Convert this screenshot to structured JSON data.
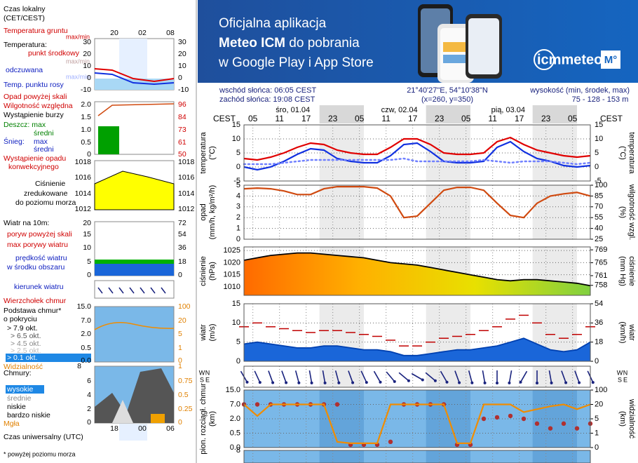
{
  "legend": {
    "local_time": [
      "Czas lokalny",
      "(CET/CEST)"
    ],
    "local_hours": [
      "20",
      "02",
      "08"
    ],
    "temp_labels": [
      "Temperatura gruntu",
      "max/min",
      "Temperatura:",
      "punkt środkowy",
      "max/min",
      "odczuwana",
      "max/min",
      "Temp. punktu rosy"
    ],
    "temp_ticks": [
      "30",
      "20",
      "10",
      "0",
      "-10"
    ],
    "precip_labels": [
      "Opad powyżej skali",
      "Wilgotność względna",
      "Wystąpienie burzy",
      "Deszcz: max",
      "średni",
      "Śnieg:",
      "max",
      "średni",
      "Wystąpienie opadu",
      "konwekcyjnego"
    ],
    "precip_ticks": [
      "2.0",
      "1.5",
      "1.0",
      "0.5",
      "0"
    ],
    "humidity_ticks": [
      "96",
      "84",
      "73",
      "61",
      "50"
    ],
    "pressure_labels": [
      "Ciśnienie",
      "zredukowane",
      "do poziomu morza"
    ],
    "pressure_ticks": [
      "1018",
      "1016",
      "1014",
      "1012"
    ],
    "wind_labels": [
      "Wiatr na 10m:",
      "poryw powyżej skali",
      "max porywy wiatru",
      "prędkość wiatru",
      "w środku obszaru"
    ],
    "wind_ticks": [
      "20",
      "15",
      "10",
      "5",
      "0"
    ],
    "wind_kmh_ticks": [
      "72",
      "54",
      "36",
      "18",
      "0"
    ],
    "wind_direction": "kierunek wiatru",
    "cloud_base_labels": [
      "Wierzchołek chmur",
      "Podstawa chmur*",
      "o pokryciu",
      "> 7.9 okt.",
      "> 6.5 okt.",
      "> 4.5 okt.",
      "> 2.5 okt.",
      "> 0.1 okt.",
      "Widzialność"
    ],
    "cloud_base_ticks": [
      "15.0",
      "7.0",
      "2.0",
      "0.5",
      "0.0"
    ],
    "visibility_ticks": [
      "100",
      "20",
      "5",
      "1",
      "0"
    ],
    "clouds_labels": [
      "Chmury:",
      "wysokie",
      "średnie",
      "niskie",
      "bardzo niskie",
      "Mgła"
    ],
    "clouds_ticks": [
      "8",
      "6",
      "4",
      "2",
      "0"
    ],
    "fog_ticks": [
      "1",
      "0.75",
      "0.5",
      "0.25",
      "0"
    ],
    "utc_label": "Czas uniwersalny (UTC)",
    "utc_hours": [
      "18",
      "00",
      "06"
    ],
    "footnote": "* powyżej poziomu morza"
  },
  "banner": {
    "line1": "Oficjalna aplikacja",
    "line2": [
      "Meteo ICM",
      " do pobrania"
    ],
    "line3": "w Google Play i App Store",
    "logo": [
      "icmmeteo",
      "M°"
    ]
  },
  "header": {
    "sunrise": "wschód słońca: 06:05 CEST",
    "sunset": "zachód słońca: 19:08 CEST",
    "coords": "21°40'27\"E, 54°10'38\"N",
    "grid": "(x=260, y=350)",
    "elevation_label": "wysokość (min, środek, max)",
    "elevation": "75 - 128 - 153 m"
  },
  "chart_data": [
    {
      "type": "line",
      "time_zone": "CEST",
      "day_labels": [
        {
          "value": 11,
          "label": "śro, 01.04"
        },
        {
          "value": 35,
          "label": "czw, 02.04"
        },
        {
          "value": 59.5,
          "label": "pią, 03.04"
        }
      ],
      "xlim": [
        0,
        78
      ],
      "xticks": [
        {
          "value": 2,
          "label": "05"
        },
        {
          "value": 8,
          "label": "11"
        },
        {
          "value": 14,
          "label": "17"
        },
        {
          "value": 20,
          "label": "23"
        },
        {
          "value": 26,
          "label": "05"
        },
        {
          "value": 32,
          "label": "11"
        },
        {
          "value": 38,
          "label": "17"
        },
        {
          "value": 44,
          "label": "23"
        },
        {
          "value": 50,
          "label": "05"
        },
        {
          "value": 56,
          "label": "11"
        },
        {
          "value": 62,
          "label": "17"
        },
        {
          "value": 68,
          "label": "23"
        },
        {
          "value": 74,
          "label": "05"
        }
      ],
      "x": [
        0,
        3,
        6,
        9,
        12,
        15,
        18,
        21,
        24,
        27,
        30,
        33,
        36,
        39,
        42,
        45,
        48,
        51,
        54,
        57,
        60,
        63,
        66,
        69,
        72,
        75,
        78
      ],
      "y_label": [
        "temperatura",
        "(°C)"
      ],
      "ylim": [
        -5,
        15
      ],
      "yticks": [
        -5,
        0,
        5,
        10,
        15
      ],
      "series": [
        {
          "style": "line",
          "color": "#e00000",
          "values": [
            3,
            2.5,
            3.5,
            5,
            7,
            8.5,
            8,
            6,
            5,
            4.5,
            4.5,
            7,
            10,
            10,
            8,
            5,
            4.5,
            4.5,
            5,
            9,
            10.5,
            8,
            6,
            5,
            4,
            3.5,
            4
          ]
        },
        {
          "style": "line",
          "color": "#1030e0",
          "values": [
            0,
            -1,
            0,
            2,
            4.5,
            6.5,
            6,
            3,
            2,
            1.5,
            1.5,
            4,
            8,
            8.5,
            5.5,
            2,
            1.5,
            1.5,
            2,
            7,
            9,
            5.5,
            3,
            2,
            0.5,
            0,
            0.5
          ]
        },
        {
          "style": "dotted",
          "color": "#7080ff",
          "values": [
            1,
            1,
            1,
            1.5,
            2,
            2.5,
            2.5,
            2.5,
            2.5,
            2.5,
            2.5,
            2.5,
            3,
            2,
            2,
            2,
            2,
            2,
            2.5,
            2,
            1.5,
            2,
            2,
            2,
            1.5,
            1,
            1.5
          ]
        }
      ]
    },
    {
      "type": "line",
      "xlim": [
        0,
        78
      ],
      "x": [
        0,
        3,
        6,
        9,
        12,
        15,
        18,
        21,
        24,
        27,
        30,
        33,
        36,
        39,
        42,
        45,
        48,
        51,
        54,
        57,
        60,
        63,
        66,
        69,
        72,
        75,
        78
      ],
      "y_label": [
        "opad",
        "(mm/h, kg/m²/h)"
      ],
      "y2_label": [
        "(%)",
        "wilgotność wzgl."
      ],
      "ylim": [
        0,
        5
      ],
      "yticks": [
        0,
        1,
        2,
        3,
        4,
        5
      ],
      "y2lim": [
        25,
        100
      ],
      "y2ticks": [
        25,
        40,
        55,
        70,
        85,
        100
      ],
      "series": [
        {
          "style": "line",
          "axis": "y2",
          "color": "#d04a10",
          "values": [
            95,
            96,
            95,
            92,
            87,
            87,
            95,
            98,
            98,
            98,
            96,
            85,
            55,
            57,
            75,
            93,
            97,
            97,
            93,
            75,
            58,
            55,
            75,
            85,
            88,
            90,
            85
          ]
        }
      ]
    },
    {
      "type": "area",
      "xlim": [
        0,
        78
      ],
      "x": [
        0,
        3,
        6,
        9,
        12,
        15,
        18,
        21,
        24,
        27,
        30,
        33,
        36,
        39,
        42,
        45,
        48,
        51,
        54,
        57,
        60,
        63,
        66,
        69,
        72,
        75,
        78
      ],
      "y_label": [
        "ciśnienie",
        "(hPa)"
      ],
      "y2_label": [
        "(mm Hg)",
        "ciśnienie"
      ],
      "ylim": [
        1006.5,
        1026.5
      ],
      "yticks": [
        1010,
        1015,
        1020,
        1025
      ],
      "y2lim": [
        754.9,
        769.9
      ],
      "y2ticks": [
        758,
        761,
        765,
        769
      ],
      "series": [
        {
          "style": "area",
          "color": "#000000",
          "fill": [
            "#ff6a00",
            "#ffb000",
            "#e8e000",
            "#80d040"
          ],
          "values": [
            1021,
            1022,
            1023,
            1023.5,
            1024,
            1024,
            1023.5,
            1023,
            1022.5,
            1022,
            1021,
            1020,
            1019.5,
            1019,
            1018,
            1017,
            1016,
            1015,
            1014,
            1013,
            1012.5,
            1013,
            1013,
            1012.5,
            1012,
            1011.5,
            1010.5
          ]
        }
      ]
    },
    {
      "type": "area",
      "xlim": [
        0,
        78
      ],
      "x": [
        0,
        3,
        6,
        9,
        12,
        15,
        18,
        21,
        24,
        27,
        30,
        33,
        36,
        39,
        42,
        45,
        48,
        51,
        54,
        57,
        60,
        63,
        66,
        69,
        72,
        75,
        78
      ],
      "y_label": [
        "wiatr",
        "(m/s)"
      ],
      "y2_label": [
        "(km/h)",
        "wiatr"
      ],
      "ylim": [
        0,
        15
      ],
      "yticks": [
        0,
        5,
        10,
        15
      ],
      "y2lim": [
        0,
        54
      ],
      "y2ticks": [
        0,
        18,
        36,
        54
      ],
      "series": [
        {
          "style": "area",
          "color": "#0040b0",
          "fill": [
            "#1a66d9"
          ],
          "values": [
            4.5,
            5,
            4.5,
            4,
            3.5,
            3.5,
            4,
            4,
            3.5,
            3,
            3,
            2.5,
            1.5,
            1.5,
            2,
            2.5,
            3,
            3,
            3.5,
            4,
            5,
            6,
            4.5,
            3,
            2.5,
            3,
            5
          ]
        },
        {
          "style": "dash",
          "color": "#c00000",
          "values": [
            9,
            10,
            9,
            8.5,
            8,
            7.5,
            8,
            8,
            7.5,
            7,
            6.5,
            5.5,
            4,
            4,
            5,
            6,
            6.5,
            7,
            8,
            9,
            11,
            12,
            10,
            7,
            6,
            7,
            9
          ]
        }
      ]
    },
    {
      "type": "arrows",
      "xlim": [
        0,
        78
      ],
      "compass": [
        "W",
        "N",
        "S",
        "E"
      ],
      "x": [
        0,
        3,
        6,
        9,
        12,
        15,
        18,
        21,
        24,
        27,
        30,
        33,
        36,
        39,
        42,
        45,
        48,
        51,
        54,
        57,
        60,
        63,
        66,
        69,
        72,
        75,
        78
      ],
      "color": "#1a237e",
      "values": [
        60,
        65,
        70,
        70,
        75,
        80,
        80,
        75,
        70,
        65,
        60,
        50,
        40,
        30,
        40,
        60,
        70,
        75,
        80,
        90,
        100,
        120,
        90,
        80,
        70,
        70,
        65
      ]
    },
    {
      "type": "line",
      "xlim": [
        0,
        78
      ],
      "y_scale": "nonlinear",
      "y2_scale": "nonlinear",
      "x": [
        0,
        3,
        6,
        9,
        12,
        15,
        18,
        21,
        24,
        27,
        30,
        33,
        36,
        39,
        42,
        45,
        48,
        51,
        54,
        57,
        60,
        63,
        66,
        69,
        72,
        75,
        78
      ],
      "y_label": [
        "pion. rozciągł. chmur",
        "(km)"
      ],
      "y2_label": [
        "(km)",
        "widzialność"
      ],
      "ylim": [
        0,
        15
      ],
      "yticks": [
        {
          "value": 0,
          "label": "0.0"
        },
        {
          "value": 0.5,
          "label": "0.5"
        },
        {
          "value": 2,
          "label": "2.0"
        },
        {
          "value": 7,
          "label": "7.0"
        },
        {
          "value": 15,
          "label": "15.0"
        }
      ],
      "y2lim": [
        0,
        100
      ],
      "y2ticks": [
        0,
        1,
        5,
        20,
        100
      ],
      "series": [
        {
          "style": "dots",
          "color": "#b03030",
          "values": [
            7,
            7,
            7,
            7,
            7,
            7,
            7,
            7,
            0.1,
            0.1,
            0.1,
            0.2,
            7,
            7,
            7,
            7,
            0.1,
            0.1,
            2,
            2.5,
            3,
            2,
            1.5,
            1,
            1.5,
            1,
            1.5
          ]
        },
        {
          "style": "line",
          "axis": "y2",
          "color": "#f08c00",
          "values": [
            20,
            8,
            20,
            20,
            20,
            20,
            20,
            0.4,
            0.3,
            0.3,
            0.3,
            20,
            20,
            20,
            20,
            20,
            0.3,
            0.3,
            20,
            20,
            20,
            12,
            15,
            18,
            20,
            15,
            20
          ]
        }
      ]
    },
    {
      "type": "strip",
      "ylim": [
        0,
        8
      ],
      "yticks": [
        8
      ]
    }
  ]
}
